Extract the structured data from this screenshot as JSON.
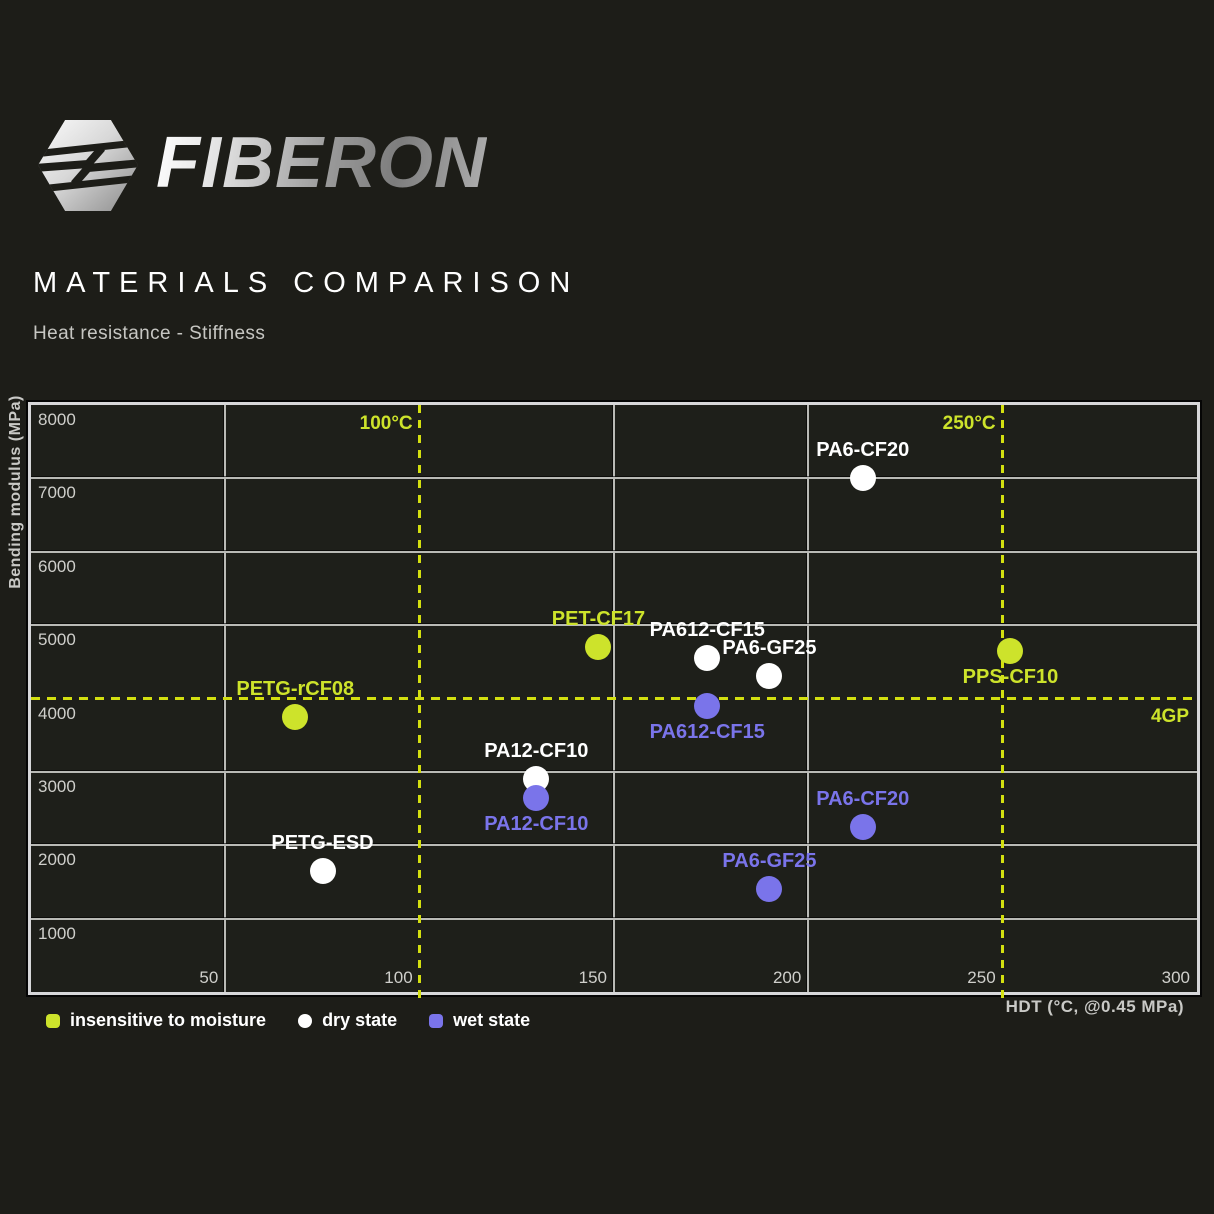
{
  "header": {
    "brand": "FIBERON",
    "title": "MATERIALS COMPARISON",
    "subtitle": "Heat resistance - Stiffness"
  },
  "colors": {
    "background": "#1d1d18",
    "plot_background": "#1e1f1a",
    "grid": "#b9bab6",
    "border": "#d7d7d9",
    "accent_yellow": "#cde32b",
    "dash_yellow": "#d3df10",
    "dry_white": "#ffffff",
    "wet_purple": "#7a74ea",
    "text_gray": "#c9c9c6"
  },
  "chart_data": {
    "type": "scatter",
    "xlabel": "HDT (°C, @0.45 MPa)",
    "ylabel": "Bending modulus (MPa)",
    "xlim": [
      0,
      300
    ],
    "ylim": [
      0,
      8000
    ],
    "xticks": [
      50,
      100,
      150,
      200,
      250,
      300
    ],
    "yticks": [
      1000,
      2000,
      3000,
      4000,
      5000,
      6000,
      7000,
      8000
    ],
    "solid_grid_x": [
      50,
      150,
      200
    ],
    "solid_grid_y": [
      1000,
      2000,
      3000,
      5000,
      6000,
      7000
    ],
    "reference_lines": [
      {
        "axis": "x",
        "value": 100,
        "label": "100°C"
      },
      {
        "axis": "x",
        "value": 250,
        "label": "250°C"
      },
      {
        "axis": "y",
        "value": 4000,
        "label": "4GP"
      }
    ],
    "series": [
      {
        "name": "insensitive to moisture",
        "key": "insensitive",
        "color": "#cde32b",
        "points": [
          {
            "label": "PETG-rCF08",
            "x": 68,
            "y": 3750,
            "label_pos": "above"
          },
          {
            "label": "PET-CF17",
            "x": 146,
            "y": 4700,
            "label_pos": "above"
          },
          {
            "label": "PPS-CF10",
            "x": 252,
            "y": 4650,
            "label_pos": "below"
          }
        ]
      },
      {
        "name": "dry state",
        "key": "dry",
        "color": "#ffffff",
        "points": [
          {
            "label": "PETG-ESD",
            "x": 75,
            "y": 1650,
            "label_pos": "above"
          },
          {
            "label": "PA12-CF10",
            "x": 130,
            "y": 2900,
            "label_pos": "above"
          },
          {
            "label": "PA612-CF15",
            "x": 174,
            "y": 4550,
            "label_pos": "above"
          },
          {
            "label": "PA6-GF25",
            "x": 190,
            "y": 4300,
            "label_pos": "above"
          },
          {
            "label": "PA6-CF20",
            "x": 214,
            "y": 7000,
            "label_pos": "above"
          }
        ]
      },
      {
        "name": "wet state",
        "key": "wet",
        "color": "#7a74ea",
        "points": [
          {
            "label": "PA12-CF10",
            "x": 130,
            "y": 2650,
            "label_pos": "below"
          },
          {
            "label": "PA612-CF15",
            "x": 174,
            "y": 3900,
            "label_pos": "below"
          },
          {
            "label": "PA6-CF20",
            "x": 214,
            "y": 2250,
            "label_pos": "above"
          },
          {
            "label": "PA6-GF25",
            "x": 190,
            "y": 1400,
            "label_pos": "above"
          }
        ]
      }
    ]
  },
  "legend": {
    "marker_shapes": [
      "rounded-square",
      "circle",
      "rounded-square"
    ]
  }
}
